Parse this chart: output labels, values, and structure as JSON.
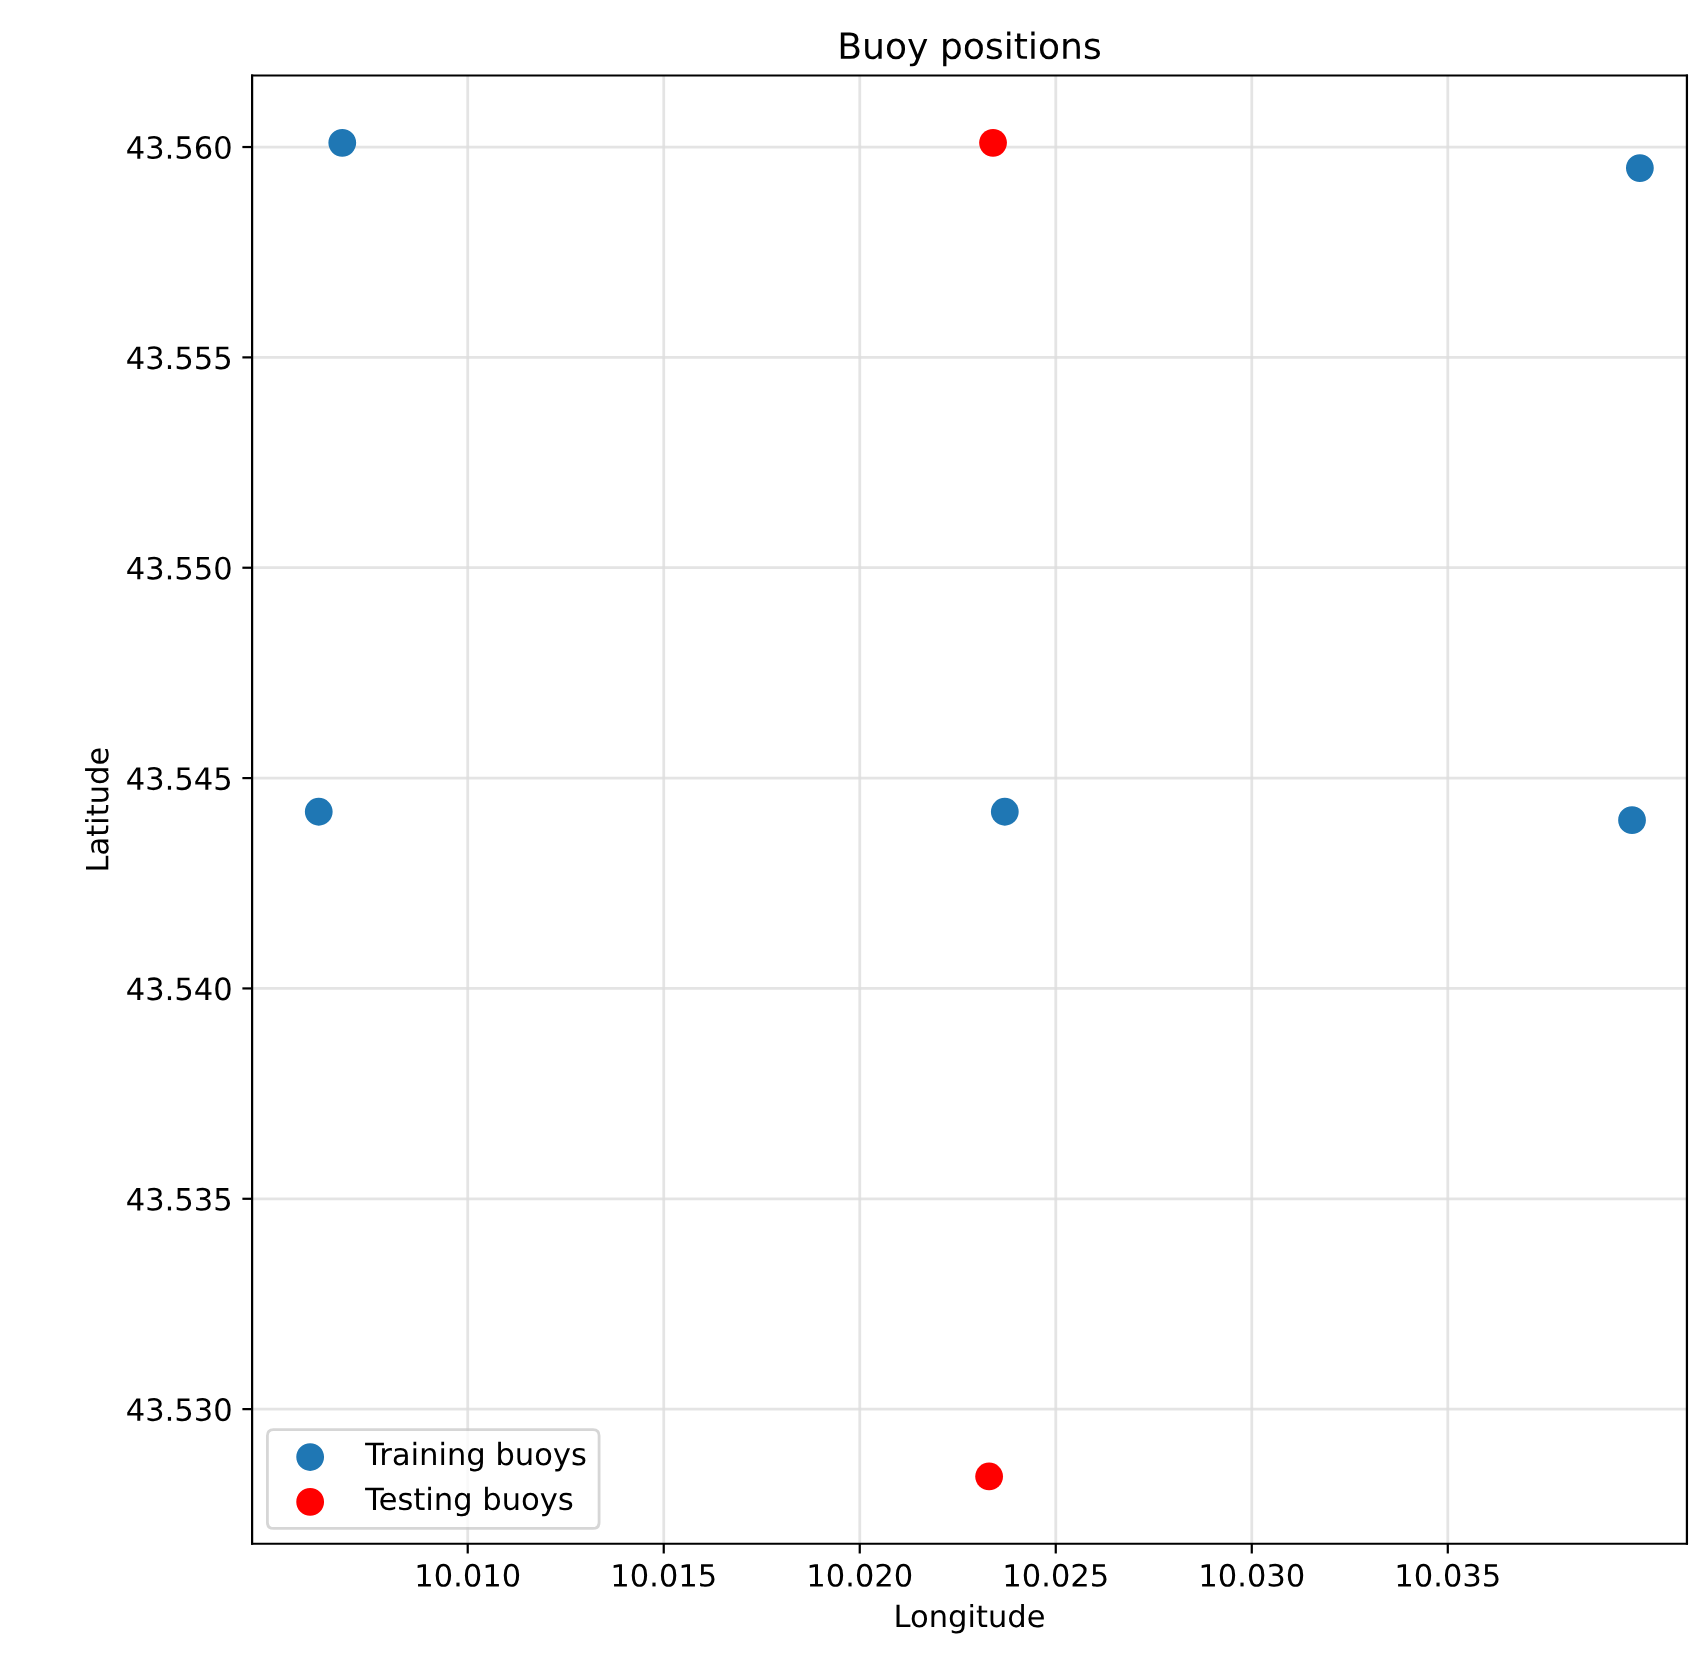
{
  "chart_data": {
    "type": "scatter",
    "title": "Buoy positions",
    "xlabel": "Longitude",
    "ylabel": "Latitude",
    "series": [
      {
        "name": "Training buoys",
        "color": "#1f77b4",
        "x": [
          10.0068,
          10.0062,
          10.0237,
          10.0399,
          10.0397
        ],
        "values": [
          43.5601,
          43.5442,
          43.5442,
          43.5595,
          43.544
        ]
      },
      {
        "name": "Testing buoys",
        "color": "#ff0000",
        "x": [
          10.0234,
          10.0233
        ],
        "values": [
          43.5601,
          43.5284
        ]
      }
    ],
    "xlim": [
      10.0045,
      10.0411
    ],
    "ylim": [
      43.5268,
      43.5617
    ],
    "xticks": [
      {
        "value": 10.01,
        "label": "10.010"
      },
      10.015,
      {
        "value": 10.02,
        "label": "10.020"
      },
      10.025,
      {
        "value": 10.03,
        "label": "10.030"
      },
      10.035
    ],
    "yticks": [
      {
        "value": 43.53,
        "label": "43.530"
      },
      43.535,
      {
        "value": 43.54,
        "label": "43.540"
      },
      43.545,
      {
        "value": 43.55,
        "label": "43.550"
      },
      43.555,
      {
        "value": 43.56,
        "label": "43.560"
      }
    ],
    "grid": true,
    "legend": "bottom left",
    "marker": "circle"
  }
}
